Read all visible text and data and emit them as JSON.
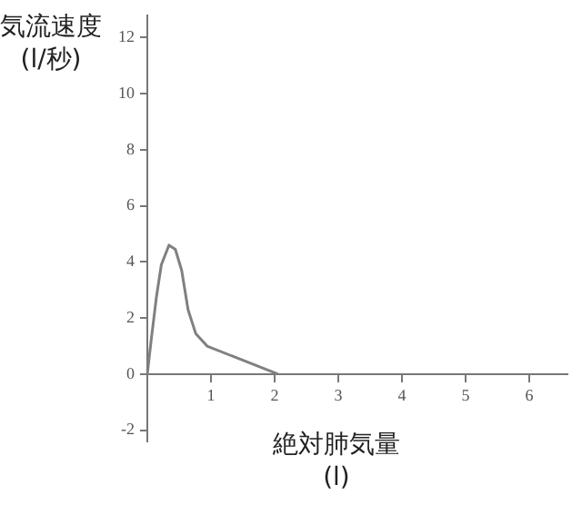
{
  "chart_data": {
    "type": "line",
    "xlabel": "絶対肺気量\n(l)",
    "ylabel": "気流速度\n(l/秒)",
    "x": [
      0,
      0.06,
      0.14,
      0.22,
      0.34,
      0.44,
      0.54,
      0.64,
      0.76,
      0.94,
      1.44,
      2.0,
      2.05
    ],
    "series": [
      {
        "color": "#808080",
        "values": [
          0,
          1.2,
          2.7,
          3.9,
          4.6,
          4.45,
          3.7,
          2.3,
          1.45,
          1.0,
          0.55,
          0.05,
          0
        ]
      }
    ],
    "xlim": [
      0,
      6.6
    ],
    "xticks": [
      1,
      2,
      3,
      4,
      5,
      6
    ],
    "ylim": [
      -2.4,
      12.8
    ],
    "yticks": [
      -2,
      0,
      2,
      4,
      6,
      8,
      10,
      12
    ],
    "grid": false,
    "legend": false,
    "marker": "none",
    "line_style": "solid"
  }
}
